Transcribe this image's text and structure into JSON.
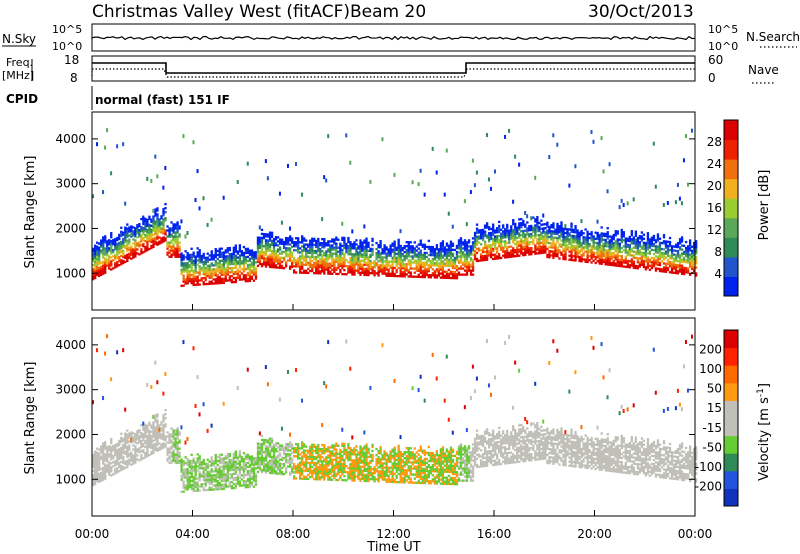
{
  "header": {
    "title": "Christmas Valley West (fitACF)",
    "beam": "Beam 20",
    "date": "30/Oct/2013"
  },
  "top_panels": {
    "nsky_label": "N.Sky",
    "nsky_ticks": [
      "10^5",
      "10^0"
    ],
    "nsearch_label": "N.Search",
    "nsearch_ticks": [
      "10^5",
      "10^0"
    ],
    "freq_label": "Freq.",
    "freq_unit": "[MHz]",
    "freq_ticks": [
      "18",
      "8"
    ],
    "nave_label": "Nave",
    "nave_ticks": [
      "60",
      "0"
    ],
    "cpid_label": "CPID",
    "cpid_text": "normal (fast) 151 IF"
  },
  "colors": {
    "power_scale": [
      "#0022ee",
      "#2255cc",
      "#2e8b57",
      "#5aa85a",
      "#9acd32",
      "#f0b020",
      "#f07010",
      "#ee2200",
      "#dd0000"
    ],
    "velocity_scale": [
      "#1133bb",
      "#2255dd",
      "#2e8b57",
      "#66cc33",
      "#c0c0b8",
      "#c0c0b8",
      "#ff9910",
      "#ff6a00",
      "#ff2200",
      "#dd0000"
    ]
  },
  "chart_data": [
    {
      "type": "heatmap",
      "name": "power",
      "ylabel": "Slant Range [km]",
      "yticks": [
        "4000",
        "3000",
        "2000",
        "1000"
      ],
      "ylim": [
        180,
        4600
      ],
      "colorbar_label": "Power [dB]",
      "colorbar_ticks": [
        "28",
        "24",
        "20",
        "16",
        "12",
        "8",
        "4"
      ],
      "clim": [
        0,
        32
      ]
    },
    {
      "type": "heatmap",
      "name": "velocity",
      "ylabel": "Slant Range [km]",
      "yticks": [
        "4000",
        "3000",
        "2000",
        "1000"
      ],
      "ylim": [
        180,
        4600
      ],
      "colorbar_label": "Velocity [m s",
      "colorbar_unit_exp": "-1",
      "colorbar_ticks": [
        "200",
        "100",
        "50",
        "15",
        "-15",
        "-50",
        "-100",
        "-200"
      ],
      "xlabel": "Time UT",
      "xticks": [
        "00:00",
        "04:00",
        "08:00",
        "12:00",
        "16:00",
        "20:00",
        "00:00"
      ],
      "xlim": [
        0,
        24
      ]
    }
  ]
}
